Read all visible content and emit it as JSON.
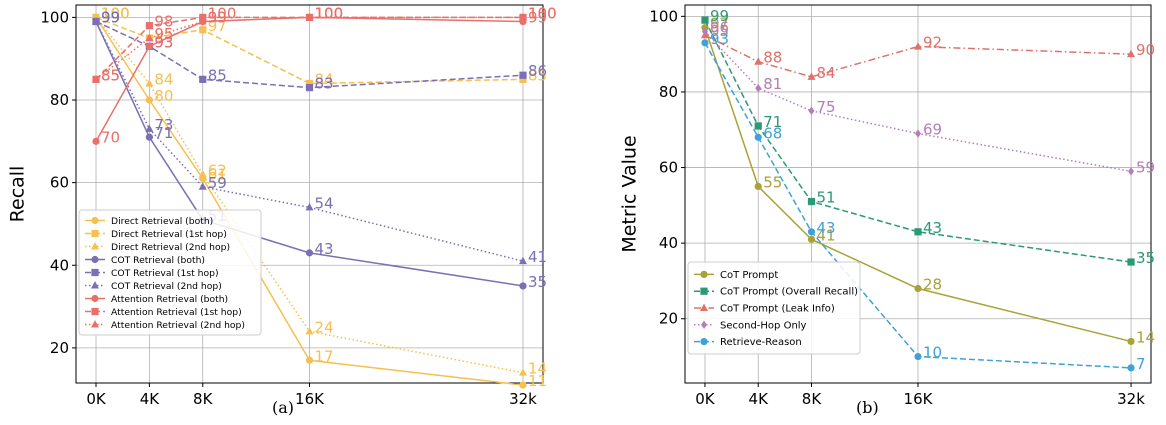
{
  "captions": [
    "(a)",
    "(b)"
  ],
  "chart_data": [
    {
      "type": "line",
      "title": "",
      "xlabel": "",
      "ylabel": "Recall",
      "categories": [
        "0K",
        "4K",
        "8K",
        "16K",
        "32k"
      ],
      "x": [
        0,
        4,
        8,
        16,
        32
      ],
      "xlim": [
        -1.5,
        33.5
      ],
      "ylim": [
        11.5,
        103
      ],
      "yticks": [
        20,
        40,
        60,
        80,
        100
      ],
      "grid": true,
      "legend_position": "lower-left",
      "series": [
        {
          "name": "Direct Retrieval (both)",
          "values": [
            100,
            80,
            61,
            17,
            11
          ],
          "color": "#f5c04f",
          "linestyle": "solid",
          "marker": "circle"
        },
        {
          "name": "Direct Retrieval (1st hop)",
          "values": [
            100,
            95,
            97,
            84,
            85
          ],
          "color": "#f5c04f",
          "linestyle": "dashed",
          "marker": "square"
        },
        {
          "name": "Direct Retrieval (2nd hop)",
          "values": [
            100,
            84,
            62,
            24,
            14
          ],
          "color": "#f5c04f",
          "linestyle": "dotted",
          "marker": "triangle"
        },
        {
          "name": "COT Retrieval (both)",
          "values": [
            99,
            71,
            51,
            43,
            35
          ],
          "color": "#7b6fb5",
          "linestyle": "solid",
          "marker": "circle"
        },
        {
          "name": "COT Retrieval (1st hop)",
          "values": [
            99,
            93,
            85,
            83,
            86
          ],
          "color": "#7b6fb5",
          "linestyle": "dashed",
          "marker": "square"
        },
        {
          "name": "COT Retrieval (2nd hop)",
          "values": [
            99,
            73,
            59,
            54,
            41
          ],
          "color": "#7b6fb5",
          "linestyle": "dotted",
          "marker": "triangle"
        },
        {
          "name": "Attention Retrieval (both)",
          "values": [
            70,
            93,
            99,
            100,
            99
          ],
          "color": "#ea6f6a",
          "linestyle": "solid",
          "marker": "circle"
        },
        {
          "name": "Attention Retrieval (1st hop)",
          "values": [
            85,
            98,
            100,
            100,
            100
          ],
          "color": "#ea6f6a",
          "linestyle": "dashed",
          "marker": "square"
        },
        {
          "name": "Attention Retrieval (2nd hop)",
          "values": [
            85,
            95,
            99,
            100,
            100
          ],
          "color": "#ea6f6a",
          "linestyle": "dotted",
          "marker": "triangle"
        }
      ]
    },
    {
      "type": "line",
      "title": "",
      "xlabel": "",
      "ylabel": "Metric Value",
      "categories": [
        "0K",
        "4K",
        "8K",
        "16K",
        "32k"
      ],
      "x": [
        0,
        4,
        8,
        16,
        32
      ],
      "xlim": [
        -1.5,
        33.5
      ],
      "ylim": [
        3,
        103
      ],
      "yticks": [
        20,
        40,
        60,
        80,
        100
      ],
      "grid": true,
      "legend_position": "lower-left",
      "series": [
        {
          "name": "CoT Prompt",
          "values": [
            97,
            55,
            41,
            28,
            14
          ],
          "color": "#a8a238",
          "linestyle": "solid",
          "marker": "circle"
        },
        {
          "name": "CoT Prompt (Overall Recall)",
          "values": [
            99,
            71,
            51,
            43,
            35
          ],
          "color": "#2a9a72",
          "linestyle": "dashed",
          "marker": "square"
        },
        {
          "name": "CoT Prompt (Leak Info)",
          "values": [
            95,
            88,
            84,
            92,
            90
          ],
          "color": "#e0716a",
          "linestyle": "dashdot",
          "marker": "triangle"
        },
        {
          "name": "Second-Hop Only",
          "values": [
            96,
            81,
            75,
            69,
            59
          ],
          "color": "#b57cb8",
          "linestyle": "dotted",
          "marker": "diamond"
        },
        {
          "name": "Retrieve-Reason",
          "values": [
            93,
            68,
            43,
            10,
            7
          ],
          "color": "#3fa2d6",
          "linestyle": "dashed",
          "marker": "circle"
        }
      ]
    }
  ]
}
